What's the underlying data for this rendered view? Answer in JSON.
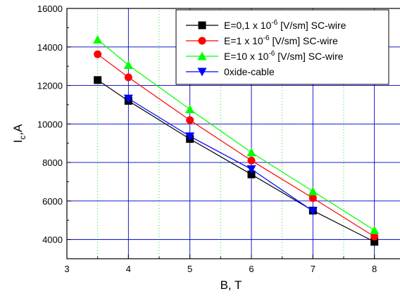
{
  "chart_data": {
    "type": "line",
    "title": "",
    "xlabel": "B, T",
    "ylabel": {
      "main": "I",
      "sub": "c",
      "suffix": ",A"
    },
    "xlim": [
      3,
      9
    ],
    "ylim": [
      3000,
      16000
    ],
    "xticks": [
      3,
      4,
      5,
      6,
      7,
      8
    ],
    "yticks": [
      4000,
      6000,
      8000,
      10000,
      12000,
      14000,
      16000
    ],
    "xtick_labels": [
      "3",
      "4",
      "5",
      "6",
      "7",
      "8"
    ],
    "ytick_labels": [
      "4000",
      "6000",
      "8000",
      "10000",
      "12000",
      "14000",
      "16000"
    ],
    "grid": {
      "major": true,
      "minor": true
    },
    "legend_position": "top-right",
    "series": [
      {
        "name": {
          "prefix": "E=0,1 x 10",
          "exp": "-6",
          "suffix": " [V/sm] SC-wire"
        },
        "color": "#000000",
        "marker": "square",
        "x": [
          3.5,
          4,
          5,
          6,
          7,
          8
        ],
        "y": [
          12280,
          11200,
          9220,
          7380,
          5500,
          3880
        ]
      },
      {
        "name": {
          "prefix": "E=1 x 10",
          "exp": "-6",
          "suffix": " [V/sm] SC-wire"
        },
        "color": "#ff0000",
        "marker": "circle",
        "x": [
          3.5,
          4,
          5,
          6,
          7,
          8
        ],
        "y": [
          13620,
          12420,
          10200,
          8100,
          6150,
          4150
        ]
      },
      {
        "name": {
          "prefix": "E=10 x 10",
          "exp": "-6",
          "suffix": " [V/sm] SC-wire"
        },
        "color": "#00ff00",
        "marker": "triangle-up",
        "x": [
          3.5,
          4,
          5,
          6,
          7,
          8
        ],
        "y": [
          14380,
          13060,
          10760,
          8520,
          6500,
          4480
        ]
      },
      {
        "name": {
          "prefix": "0xide-cable",
          "exp": "",
          "suffix": ""
        },
        "color": "#0000ff",
        "marker": "triangle-down",
        "x": [
          4,
          5,
          6,
          7
        ],
        "y": [
          11320,
          9360,
          7650,
          5480
        ]
      }
    ]
  }
}
